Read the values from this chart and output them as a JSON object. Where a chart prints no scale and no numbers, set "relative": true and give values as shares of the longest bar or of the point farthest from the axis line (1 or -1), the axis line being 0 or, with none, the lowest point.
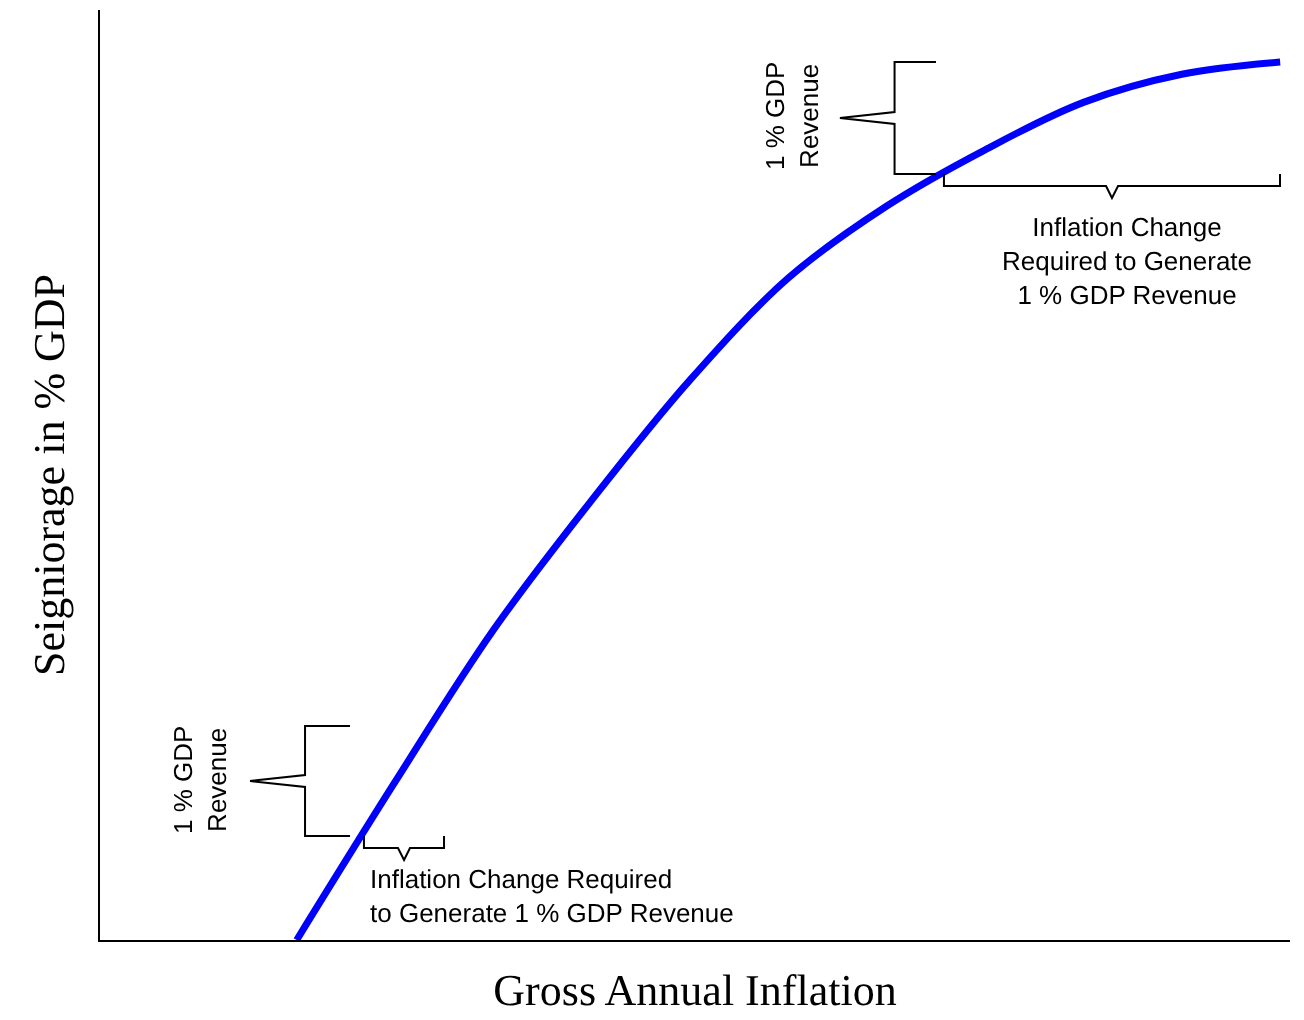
{
  "chart_data": {
    "type": "line",
    "relative": true,
    "xlabel": "Gross Annual Inflation",
    "ylabel": "Seigniorage in % GDP",
    "categories": [
      null,
      null,
      null,
      null,
      null,
      null,
      null,
      null,
      null,
      null,
      null,
      null,
      null
    ],
    "series": [
      {
        "color": "#0000ff",
        "values": [
          null,
          null,
          0,
          0.18,
          0.353,
          0.501,
          0.638,
          0.754,
          0.836,
          0.9,
          0.954,
          0.986,
          1
        ]
      }
    ],
    "annotations": [
      "1 % GDP\nRevenue",
      "Inflation Change Required\nto Generate 1 % GDP Revenue",
      "1 % GDP\nRevenue",
      "Inflation Change\nRequired to Generate\n1 % GDP Revenue"
    ],
    "marker": "none",
    "line_style": "solid"
  }
}
